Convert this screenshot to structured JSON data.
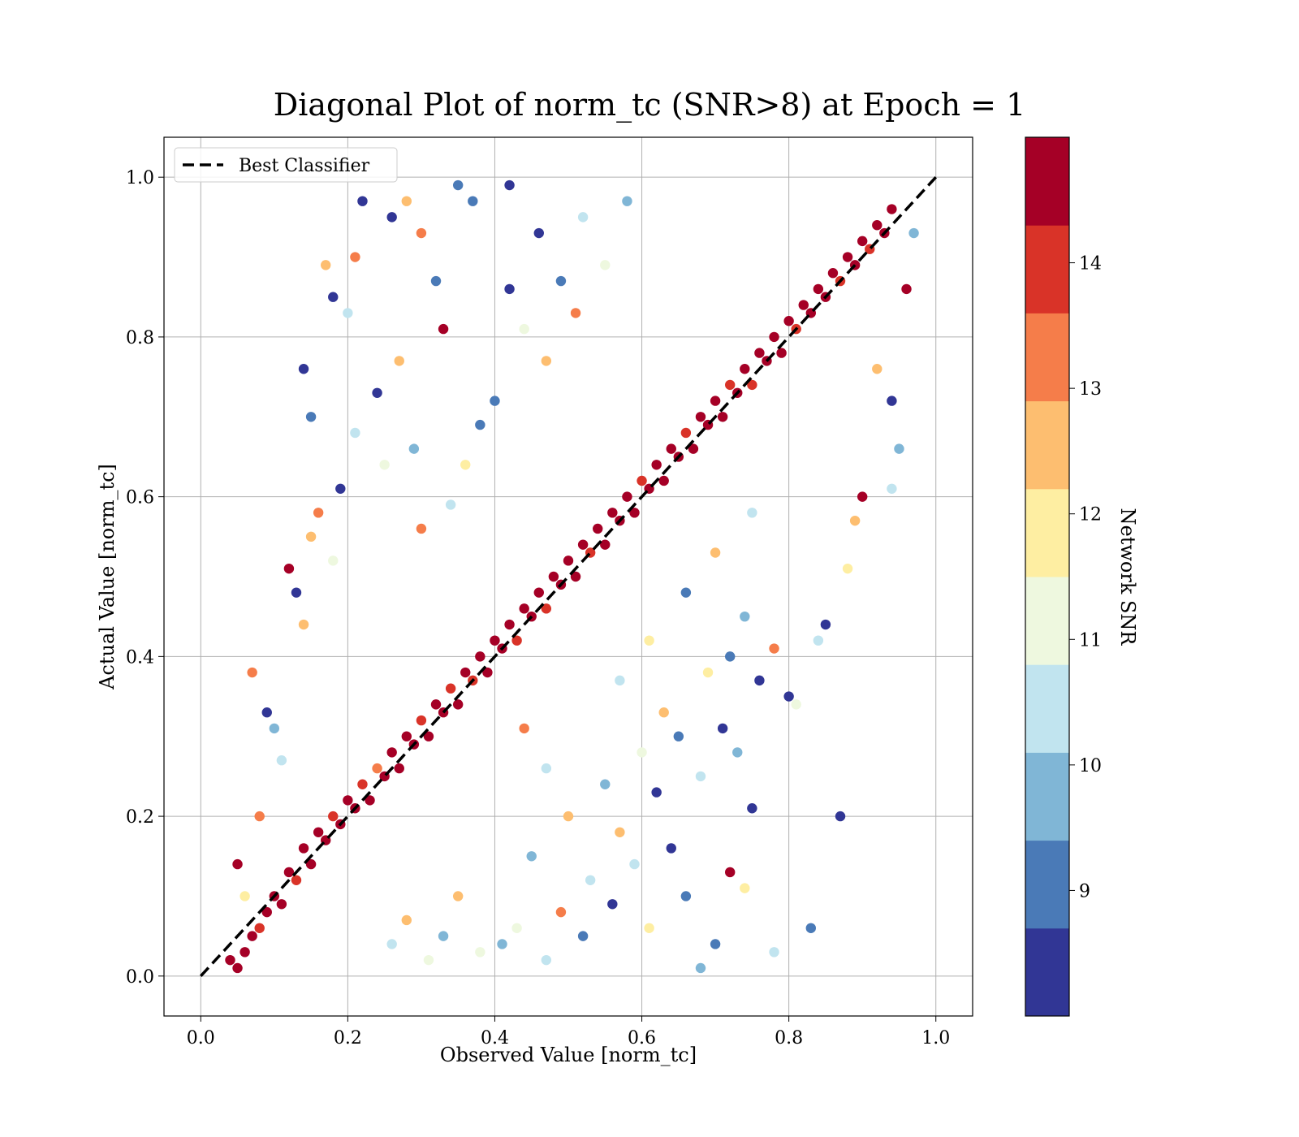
{
  "chart_data": {
    "type": "scatter",
    "title": "Diagonal Plot of norm_tc (SNR>8) at Epoch = 1",
    "xlabel": "Observed Value [norm_tc]",
    "ylabel": "Actual Value [norm_tc]",
    "xlim": [
      -0.05,
      1.05
    ],
    "ylim": [
      -0.05,
      1.05
    ],
    "x_ticks": [
      "0.0",
      "0.2",
      "0.4",
      "0.6",
      "0.8",
      "1.0"
    ],
    "y_ticks": [
      "0.0",
      "0.2",
      "0.4",
      "0.6",
      "0.8",
      "1.0"
    ],
    "grid": true,
    "legend": {
      "placement": "top-left",
      "entries": [
        {
          "label": "Best Classifier",
          "style": "dashed",
          "color": "#000000"
        }
      ]
    },
    "reference_line": {
      "name": "Best Classifier",
      "x": [
        0.0,
        1.0
      ],
      "y": [
        0.0,
        1.0
      ]
    },
    "colorbar": {
      "label": "Network SNR",
      "range": [
        8.0,
        15.0
      ],
      "ticks": [
        "9",
        "10",
        "11",
        "12",
        "13",
        "14"
      ],
      "bins": [
        {
          "from": 8.0,
          "to": 8.7,
          "color": "#313695"
        },
        {
          "from": 8.7,
          "to": 9.4,
          "color": "#4a7ab7"
        },
        {
          "from": 9.4,
          "to": 10.1,
          "color": "#80b6d6"
        },
        {
          "from": 10.1,
          "to": 10.8,
          "color": "#c1e4ef"
        },
        {
          "from": 10.8,
          "to": 11.5,
          "color": "#eef8df"
        },
        {
          "from": 11.5,
          "to": 12.2,
          "color": "#feeea2"
        },
        {
          "from": 12.2,
          "to": 12.9,
          "color": "#fdbe70"
        },
        {
          "from": 12.9,
          "to": 13.6,
          "color": "#f57d4a"
        },
        {
          "from": 13.6,
          "to": 14.3,
          "color": "#d93328"
        },
        {
          "from": 14.3,
          "to": 15.0,
          "color": "#a50026"
        }
      ]
    },
    "points": [
      [
        0.05,
        0.01,
        14.8
      ],
      [
        0.06,
        0.03,
        14.6
      ],
      [
        0.07,
        0.05,
        14.9
      ],
      [
        0.08,
        0.06,
        13.8
      ],
      [
        0.09,
        0.08,
        14.7
      ],
      [
        0.1,
        0.1,
        14.9
      ],
      [
        0.11,
        0.09,
        14.5
      ],
      [
        0.12,
        0.13,
        14.8
      ],
      [
        0.13,
        0.12,
        13.9
      ],
      [
        0.14,
        0.16,
        14.7
      ],
      [
        0.15,
        0.14,
        14.9
      ],
      [
        0.16,
        0.18,
        14.4
      ],
      [
        0.17,
        0.17,
        14.8
      ],
      [
        0.18,
        0.2,
        13.7
      ],
      [
        0.19,
        0.19,
        14.9
      ],
      [
        0.2,
        0.22,
        14.6
      ],
      [
        0.21,
        0.21,
        14.8
      ],
      [
        0.22,
        0.24,
        14.2
      ],
      [
        0.23,
        0.22,
        14.9
      ],
      [
        0.24,
        0.26,
        13.5
      ],
      [
        0.25,
        0.25,
        14.8
      ],
      [
        0.26,
        0.28,
        14.7
      ],
      [
        0.27,
        0.26,
        14.9
      ],
      [
        0.28,
        0.3,
        14.3
      ],
      [
        0.29,
        0.29,
        14.8
      ],
      [
        0.3,
        0.32,
        13.9
      ],
      [
        0.31,
        0.3,
        14.9
      ],
      [
        0.32,
        0.34,
        14.6
      ],
      [
        0.33,
        0.33,
        14.8
      ],
      [
        0.34,
        0.36,
        14.1
      ],
      [
        0.35,
        0.34,
        14.9
      ],
      [
        0.36,
        0.38,
        14.7
      ],
      [
        0.37,
        0.37,
        13.6
      ],
      [
        0.38,
        0.4,
        14.8
      ],
      [
        0.39,
        0.38,
        14.9
      ],
      [
        0.4,
        0.42,
        14.5
      ],
      [
        0.41,
        0.41,
        14.8
      ],
      [
        0.42,
        0.44,
        14.9
      ],
      [
        0.43,
        0.42,
        14.0
      ],
      [
        0.44,
        0.46,
        14.7
      ],
      [
        0.45,
        0.45,
        14.9
      ],
      [
        0.46,
        0.48,
        14.6
      ],
      [
        0.47,
        0.46,
        13.8
      ],
      [
        0.48,
        0.5,
        14.8
      ],
      [
        0.49,
        0.49,
        14.9
      ],
      [
        0.5,
        0.52,
        14.4
      ],
      [
        0.51,
        0.5,
        14.8
      ],
      [
        0.52,
        0.54,
        14.9
      ],
      [
        0.53,
        0.53,
        13.7
      ],
      [
        0.54,
        0.56,
        14.8
      ],
      [
        0.55,
        0.54,
        14.6
      ],
      [
        0.56,
        0.58,
        14.9
      ],
      [
        0.57,
        0.57,
        14.3
      ],
      [
        0.58,
        0.6,
        14.8
      ],
      [
        0.59,
        0.58,
        14.9
      ],
      [
        0.6,
        0.62,
        13.9
      ],
      [
        0.61,
        0.61,
        14.7
      ],
      [
        0.62,
        0.64,
        14.9
      ],
      [
        0.63,
        0.62,
        14.5
      ],
      [
        0.64,
        0.66,
        14.8
      ],
      [
        0.65,
        0.65,
        14.9
      ],
      [
        0.66,
        0.68,
        13.6
      ],
      [
        0.67,
        0.66,
        14.8
      ],
      [
        0.68,
        0.7,
        14.9
      ],
      [
        0.69,
        0.69,
        14.4
      ],
      [
        0.7,
        0.72,
        14.8
      ],
      [
        0.71,
        0.7,
        14.9
      ],
      [
        0.72,
        0.74,
        14.1
      ],
      [
        0.73,
        0.73,
        14.8
      ],
      [
        0.74,
        0.76,
        14.9
      ],
      [
        0.75,
        0.74,
        13.8
      ],
      [
        0.76,
        0.78,
        14.7
      ],
      [
        0.77,
        0.77,
        14.9
      ],
      [
        0.78,
        0.8,
        14.6
      ],
      [
        0.79,
        0.78,
        14.8
      ],
      [
        0.8,
        0.82,
        14.9
      ],
      [
        0.81,
        0.81,
        13.9
      ],
      [
        0.82,
        0.84,
        14.8
      ],
      [
        0.83,
        0.83,
        14.9
      ],
      [
        0.84,
        0.86,
        14.5
      ],
      [
        0.85,
        0.85,
        14.8
      ],
      [
        0.86,
        0.88,
        14.9
      ],
      [
        0.87,
        0.87,
        14.2
      ],
      [
        0.88,
        0.9,
        14.8
      ],
      [
        0.89,
        0.89,
        14.9
      ],
      [
        0.9,
        0.92,
        14.7
      ],
      [
        0.91,
        0.91,
        13.7
      ],
      [
        0.92,
        0.94,
        14.9
      ],
      [
        0.93,
        0.93,
        14.8
      ],
      [
        0.94,
        0.96,
        14.9
      ],
      [
        0.14,
        0.76,
        8.3
      ],
      [
        0.15,
        0.7,
        9.1
      ],
      [
        0.18,
        0.85,
        8.4
      ],
      [
        0.22,
        0.97,
        8.5
      ],
      [
        0.26,
        0.95,
        8.6
      ],
      [
        0.32,
        0.87,
        8.9
      ],
      [
        0.35,
        0.99,
        9.3
      ],
      [
        0.05,
        0.14,
        14.7
      ],
      [
        0.04,
        0.02,
        14.5
      ],
      [
        0.87,
        0.2,
        8.4
      ],
      [
        0.83,
        0.06,
        9.0
      ],
      [
        0.78,
        0.03,
        10.3
      ],
      [
        0.81,
        0.34,
        10.8
      ],
      [
        0.8,
        0.35,
        8.5
      ],
      [
        0.75,
        0.21,
        8.6
      ],
      [
        0.72,
        0.13,
        14.8
      ],
      [
        0.7,
        0.04,
        9.2
      ],
      [
        0.68,
        0.01,
        9.4
      ],
      [
        0.74,
        0.11,
        11.9
      ],
      [
        0.85,
        0.44,
        8.3
      ],
      [
        0.84,
        0.42,
        10.4
      ],
      [
        0.88,
        0.51,
        12.0
      ],
      [
        0.9,
        0.6,
        14.8
      ],
      [
        0.94,
        0.72,
        8.6
      ],
      [
        0.95,
        0.66,
        9.5
      ],
      [
        0.94,
        0.61,
        10.6
      ],
      [
        0.96,
        0.86,
        14.9
      ],
      [
        0.97,
        0.93,
        9.8
      ],
      [
        0.92,
        0.76,
        12.6
      ],
      [
        0.89,
        0.57,
        12.3
      ],
      [
        0.27,
        0.77,
        12.5
      ],
      [
        0.24,
        0.73,
        8.5
      ],
      [
        0.25,
        0.64,
        10.9
      ],
      [
        0.21,
        0.68,
        10.6
      ],
      [
        0.19,
        0.61,
        8.5
      ],
      [
        0.16,
        0.58,
        13.1
      ],
      [
        0.15,
        0.55,
        12.6
      ],
      [
        0.17,
        0.89,
        12.2
      ],
      [
        0.2,
        0.83,
        10.3
      ],
      [
        0.21,
        0.9,
        13.3
      ],
      [
        0.28,
        0.97,
        12.7
      ],
      [
        0.3,
        0.93,
        13.4
      ],
      [
        0.33,
        0.81,
        14.9
      ],
      [
        0.37,
        0.97,
        8.7
      ],
      [
        0.42,
        0.99,
        8.6
      ],
      [
        0.08,
        0.2,
        13.0
      ],
      [
        0.07,
        0.38,
        13.2
      ],
      [
        0.1,
        0.31,
        9.8
      ],
      [
        0.12,
        0.51,
        14.8
      ],
      [
        0.14,
        0.44,
        12.8
      ],
      [
        0.18,
        0.52,
        11.3
      ],
      [
        0.11,
        0.27,
        10.5
      ],
      [
        0.13,
        0.48,
        8.5
      ],
      [
        0.09,
        0.33,
        8.6
      ],
      [
        0.06,
        0.1,
        12.0
      ],
      [
        0.41,
        0.04,
        9.6
      ],
      [
        0.47,
        0.02,
        10.3
      ],
      [
        0.52,
        0.05,
        9.0
      ],
      [
        0.56,
        0.09,
        8.5
      ],
      [
        0.59,
        0.14,
        10.7
      ],
      [
        0.61,
        0.06,
        11.8
      ],
      [
        0.64,
        0.16,
        8.6
      ],
      [
        0.66,
        0.1,
        9.3
      ],
      [
        0.62,
        0.23,
        8.4
      ],
      [
        0.57,
        0.18,
        12.4
      ],
      [
        0.53,
        0.12,
        10.1
      ],
      [
        0.49,
        0.08,
        13.2
      ],
      [
        0.45,
        0.15,
        9.7
      ],
      [
        0.43,
        0.06,
        11.4
      ],
      [
        0.38,
        0.03,
        10.9
      ],
      [
        0.35,
        0.1,
        12.6
      ],
      [
        0.33,
        0.05,
        9.5
      ],
      [
        0.31,
        0.02,
        11.1
      ],
      [
        0.28,
        0.07,
        12.8
      ],
      [
        0.26,
        0.04,
        10.6
      ],
      [
        0.65,
        0.3,
        8.7
      ],
      [
        0.68,
        0.25,
        10.2
      ],
      [
        0.71,
        0.31,
        8.5
      ],
      [
        0.73,
        0.28,
        9.4
      ],
      [
        0.69,
        0.38,
        11.6
      ],
      [
        0.76,
        0.37,
        8.6
      ],
      [
        0.78,
        0.41,
        13.1
      ],
      [
        0.74,
        0.45,
        10.0
      ],
      [
        0.72,
        0.4,
        9.0
      ],
      [
        0.63,
        0.33,
        12.2
      ],
      [
        0.46,
        0.93,
        8.5
      ],
      [
        0.49,
        0.87,
        9.2
      ],
      [
        0.52,
        0.95,
        10.5
      ],
      [
        0.55,
        0.89,
        11.2
      ],
      [
        0.58,
        0.97,
        9.7
      ],
      [
        0.44,
        0.81,
        10.8
      ],
      [
        0.47,
        0.77,
        12.4
      ],
      [
        0.4,
        0.72,
        9.1
      ],
      [
        0.42,
        0.86,
        8.6
      ],
      [
        0.51,
        0.83,
        13.0
      ],
      [
        0.36,
        0.64,
        11.7
      ],
      [
        0.38,
        0.69,
        8.8
      ],
      [
        0.34,
        0.59,
        10.4
      ],
      [
        0.3,
        0.56,
        12.9
      ],
      [
        0.29,
        0.66,
        9.6
      ],
      [
        0.57,
        0.37,
        10.1
      ],
      [
        0.61,
        0.42,
        11.9
      ],
      [
        0.66,
        0.48,
        9.3
      ],
      [
        0.7,
        0.53,
        12.7
      ],
      [
        0.75,
        0.58,
        10.6
      ],
      [
        0.55,
        0.24,
        9.9
      ],
      [
        0.5,
        0.2,
        12.5
      ],
      [
        0.47,
        0.26,
        10.7
      ],
      [
        0.44,
        0.31,
        13.3
      ],
      [
        0.6,
        0.28,
        11.1
      ]
    ]
  }
}
